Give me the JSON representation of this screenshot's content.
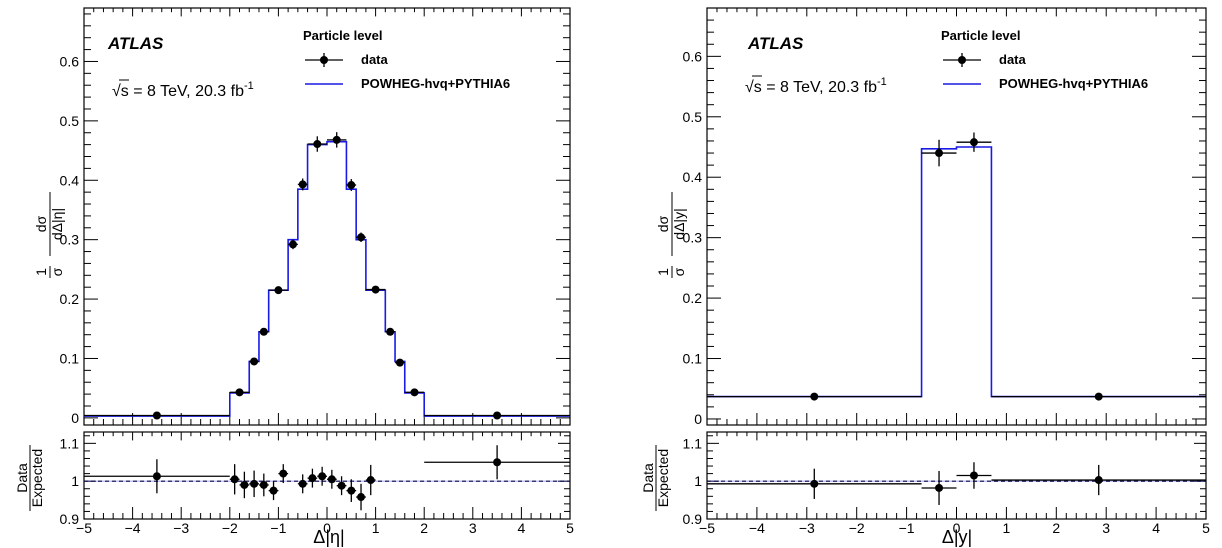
{
  "colors": {
    "mc": "#1a1ae6",
    "data": "#000000"
  },
  "chart_data": [
    {
      "type": "line",
      "id": "eta",
      "atlas_label": "ATLAS",
      "energy_label": "√s = 8 TeV,  20.3 fb",
      "lumi_exp": "-1",
      "legend_title": "Particle level",
      "legend_data": "data",
      "legend_mc": "POWHEG-hvq+PYTHIA6",
      "ylabel_num": "1",
      "ylabel_den": "σ",
      "ylabel_dnum": "dσ",
      "ylabel_dden": "dΔ|η|",
      "xlabel": "Δ|η|",
      "ratio_num": "Data",
      "ratio_den": "Expected",
      "xlim": [
        -5,
        5
      ],
      "ylim": [
        -0.012,
        0.69
      ],
      "ratio_ylim": [
        0.9,
        1.13
      ],
      "xticks": [
        "-5",
        "-4",
        "-3",
        "-2",
        "-1",
        "0",
        "1",
        "2",
        "3",
        "4",
        "5"
      ],
      "yticks": [
        "0",
        "0.1",
        "0.2",
        "0.3",
        "0.4",
        "0.5",
        "0.6"
      ],
      "ratio_yticks": [
        "0.9",
        "1",
        "1.1"
      ],
      "bin_edges": [
        -5,
        -2,
        -1.8,
        -1.6,
        -1.4,
        -1.2,
        -1.0,
        -0.8,
        -0.6,
        -0.4,
        -0.2,
        0,
        0.2,
        0.4,
        0.6,
        0.8,
        1.0,
        1.2,
        1.4,
        1.6,
        1.8,
        2,
        5
      ],
      "mc_values": [
        0.003,
        0.042,
        0.095,
        0.145,
        0.215,
        0.3,
        0.385,
        0.46,
        0.465,
        0.385,
        0.3,
        0.215,
        0.145,
        0.095,
        0.042,
        0.003
      ],
      "mc_bin_edges": [
        -5,
        -2,
        -1.6,
        -1.4,
        -1.2,
        -0.8,
        -0.6,
        -0.4,
        0,
        0.4,
        0.6,
        0.8,
        1.2,
        1.4,
        1.6,
        2,
        5
      ],
      "data_points": [
        {
          "x": -3.5,
          "y": 0.004,
          "xerr": 1.5,
          "yerr": 0.002
        },
        {
          "x": -1.8,
          "y": 0.043,
          "xerr": 0.2,
          "yerr": 0.003
        },
        {
          "x": -1.5,
          "y": 0.095,
          "xerr": 0.1,
          "yerr": 0.004
        },
        {
          "x": -1.3,
          "y": 0.145,
          "xerr": 0.1,
          "yerr": 0.005
        },
        {
          "x": -1.0,
          "y": 0.215,
          "xerr": 0.2,
          "yerr": 0.006
        },
        {
          "x": -0.7,
          "y": 0.292,
          "xerr": 0.1,
          "yerr": 0.008
        },
        {
          "x": -0.5,
          "y": 0.393,
          "xerr": 0.1,
          "yerr": 0.01
        },
        {
          "x": -0.2,
          "y": 0.461,
          "xerr": 0.2,
          "yerr": 0.013
        },
        {
          "x": 0.2,
          "y": 0.468,
          "xerr": 0.2,
          "yerr": 0.013
        },
        {
          "x": 0.5,
          "y": 0.392,
          "xerr": 0.1,
          "yerr": 0.01
        },
        {
          "x": 0.7,
          "y": 0.304,
          "xerr": 0.1,
          "yerr": 0.008
        },
        {
          "x": 1.0,
          "y": 0.216,
          "xerr": 0.2,
          "yerr": 0.006
        },
        {
          "x": 1.3,
          "y": 0.145,
          "xerr": 0.1,
          "yerr": 0.005
        },
        {
          "x": 1.5,
          "y": 0.093,
          "xerr": 0.1,
          "yerr": 0.004
        },
        {
          "x": 1.8,
          "y": 0.043,
          "xerr": 0.2,
          "yerr": 0.003
        },
        {
          "x": 3.5,
          "y": 0.004,
          "xerr": 1.5,
          "yerr": 0.002
        }
      ],
      "ratio_points": [
        {
          "x": -3.5,
          "y": 1.013,
          "xerr": 1.5,
          "yerr": 0.045
        },
        {
          "x": -1.9,
          "y": 1.005,
          "xerr": 0.1,
          "yerr": 0.04
        },
        {
          "x": -1.7,
          "y": 0.99,
          "xerr": 0.1,
          "yerr": 0.035
        },
        {
          "x": -1.5,
          "y": 0.993,
          "xerr": 0.1,
          "yerr": 0.035
        },
        {
          "x": -1.3,
          "y": 0.99,
          "xerr": 0.1,
          "yerr": 0.03
        },
        {
          "x": -1.1,
          "y": 0.975,
          "xerr": 0.1,
          "yerr": 0.025
        },
        {
          "x": -0.9,
          "y": 1.02,
          "xerr": 0.1,
          "yerr": 0.025
        },
        {
          "x": -0.5,
          "y": 0.993,
          "xerr": 0.1,
          "yerr": 0.025
        },
        {
          "x": -0.3,
          "y": 1.008,
          "xerr": 0.1,
          "yerr": 0.025
        },
        {
          "x": -0.1,
          "y": 1.013,
          "xerr": 0.1,
          "yerr": 0.025
        },
        {
          "x": 0.1,
          "y": 1.005,
          "xerr": 0.1,
          "yerr": 0.025
        },
        {
          "x": 0.3,
          "y": 0.988,
          "xerr": 0.1,
          "yerr": 0.025
        },
        {
          "x": 0.5,
          "y": 0.975,
          "xerr": 0.1,
          "yerr": 0.03
        },
        {
          "x": 0.7,
          "y": 0.958,
          "xerr": 0.1,
          "yerr": 0.035
        },
        {
          "x": 0.9,
          "y": 1.003,
          "xerr": 0.1,
          "yerr": 0.04
        },
        {
          "x": 3.5,
          "y": 1.05,
          "xerr": 1.5,
          "yerr": 0.045
        }
      ]
    },
    {
      "type": "line",
      "id": "y",
      "atlas_label": "ATLAS",
      "energy_label": "√s = 8 TeV,  20.3 fb",
      "lumi_exp": "-1",
      "legend_title": "Particle level",
      "legend_data": "data",
      "legend_mc": "POWHEG-hvq+PYTHIA6",
      "ylabel_num": "1",
      "ylabel_den": "σ",
      "ylabel_dnum": "dσ",
      "ylabel_dden": "dΔ|y|",
      "xlabel": "Δ|y|",
      "ratio_num": "Data",
      "ratio_den": "Expected",
      "xlim": [
        -5,
        5
      ],
      "ylim": [
        -0.01,
        0.68
      ],
      "ratio_ylim": [
        0.9,
        1.13
      ],
      "xticks": [
        "-5",
        "-4",
        "-3",
        "-2",
        "-1",
        "0",
        "1",
        "2",
        "3",
        "4",
        "5"
      ],
      "yticks": [
        "0",
        "0.1",
        "0.2",
        "0.3",
        "0.4",
        "0.5",
        "0.6"
      ],
      "ratio_yticks": [
        "0.9",
        "1",
        "1.1"
      ],
      "mc_bin_edges": [
        -5,
        -0.7,
        0,
        0.7,
        5
      ],
      "mc_values": [
        0.037,
        0.447,
        0.45,
        0.037
      ],
      "data_points": [
        {
          "x": -2.85,
          "y": 0.037,
          "xerr": 2.15,
          "yerr": 0.002
        },
        {
          "x": -0.35,
          "y": 0.44,
          "xerr": 0.35,
          "yerr": 0.022
        },
        {
          "x": 0.35,
          "y": 0.458,
          "xerr": 0.35,
          "yerr": 0.016
        },
        {
          "x": 2.85,
          "y": 0.037,
          "xerr": 2.15,
          "yerr": 0.002
        }
      ],
      "ratio_points": [
        {
          "x": -2.85,
          "y": 0.993,
          "xerr": 2.15,
          "yerr": 0.04
        },
        {
          "x": -0.35,
          "y": 0.982,
          "xerr": 0.35,
          "yerr": 0.045
        },
        {
          "x": 0.35,
          "y": 1.015,
          "xerr": 0.35,
          "yerr": 0.035
        },
        {
          "x": 2.85,
          "y": 1.003,
          "xerr": 2.15,
          "yerr": 0.04
        }
      ]
    }
  ]
}
